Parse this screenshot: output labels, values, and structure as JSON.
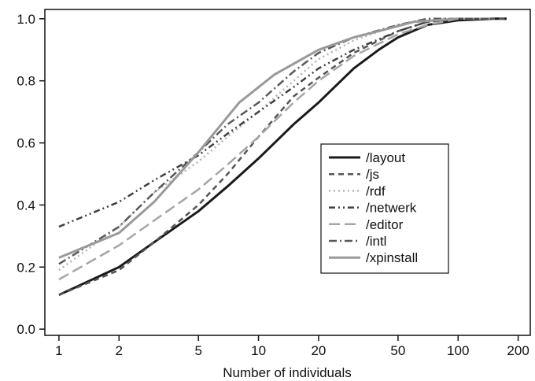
{
  "chart_data": {
    "type": "line",
    "title": "",
    "xlabel": "Number of individuals",
    "ylabel": "",
    "xscale": "log",
    "xlim": [
      0.85,
      230
    ],
    "ylim": [
      -0.02,
      1.03
    ],
    "xticks": [
      1,
      2,
      5,
      10,
      20,
      50,
      100,
      200
    ],
    "xtick_labels": [
      "1",
      "2",
      "5",
      "10",
      "20",
      "50",
      "100",
      "200"
    ],
    "yticks": [
      0.0,
      0.2,
      0.4,
      0.6,
      0.8,
      1.0
    ],
    "ytick_labels": [
      "0.0",
      "0.2",
      "0.4",
      "0.6",
      "0.8",
      "1.0"
    ],
    "grid": false,
    "legend_position": "center-right",
    "series": [
      {
        "name": "/layout",
        "color": "#1a1a1a",
        "width": 3.0,
        "dash": "",
        "x": [
          1,
          2,
          3,
          5,
          7,
          10,
          15,
          20,
          30,
          40,
          50,
          70,
          100,
          150,
          175
        ],
        "y": [
          0.11,
          0.2,
          0.28,
          0.38,
          0.46,
          0.55,
          0.66,
          0.73,
          0.84,
          0.9,
          0.94,
          0.98,
          0.995,
          1.0,
          1.0
        ]
      },
      {
        "name": "/js",
        "color": "#555555",
        "width": 2.5,
        "dash": "7,5",
        "x": [
          1,
          2,
          3,
          5,
          7,
          10,
          15,
          20,
          30,
          50,
          70,
          100,
          150,
          175
        ],
        "y": [
          0.11,
          0.19,
          0.28,
          0.4,
          0.5,
          0.62,
          0.75,
          0.81,
          0.89,
          0.96,
          0.99,
          1.0,
          1.0,
          1.0
        ]
      },
      {
        "name": "/rdf",
        "color": "#b3b3b3",
        "width": 2.5,
        "dash": "2,4",
        "x": [
          1,
          2,
          3,
          5,
          7,
          10,
          15,
          20,
          30,
          50,
          70,
          100
        ],
        "y": [
          0.19,
          0.33,
          0.44,
          0.54,
          0.62,
          0.7,
          0.8,
          0.87,
          0.93,
          0.98,
          1.0,
          1.0
        ]
      },
      {
        "name": "/netwerk",
        "color": "#404040",
        "width": 2.5,
        "dash": "8,4,2,4,2,4",
        "x": [
          1,
          2,
          3,
          5,
          7,
          10,
          15,
          20,
          30,
          50,
          70,
          100,
          150
        ],
        "y": [
          0.33,
          0.41,
          0.48,
          0.56,
          0.63,
          0.7,
          0.78,
          0.84,
          0.9,
          0.96,
          0.99,
          1.0,
          1.0
        ]
      },
      {
        "name": "/editor",
        "color": "#a6a6a6",
        "width": 2.5,
        "dash": "14,6",
        "x": [
          1,
          2,
          3,
          5,
          7,
          10,
          15,
          20,
          30,
          50,
          70,
          100,
          150
        ],
        "y": [
          0.16,
          0.27,
          0.35,
          0.45,
          0.53,
          0.62,
          0.73,
          0.8,
          0.88,
          0.95,
          0.98,
          1.0,
          1.0
        ]
      },
      {
        "name": "/intl",
        "color": "#595959",
        "width": 2.5,
        "dash": "10,4,2,4",
        "x": [
          1,
          2,
          3,
          5,
          7,
          10,
          15,
          20,
          30,
          50,
          70,
          100,
          150
        ],
        "y": [
          0.21,
          0.33,
          0.44,
          0.57,
          0.66,
          0.73,
          0.83,
          0.89,
          0.94,
          0.98,
          1.0,
          1.0,
          1.0
        ]
      },
      {
        "name": "/xpinstall",
        "color": "#999999",
        "width": 3.0,
        "dash": "",
        "x": [
          1,
          2,
          3,
          5,
          8,
          12,
          20,
          30,
          40,
          60,
          100
        ],
        "y": [
          0.23,
          0.31,
          0.41,
          0.57,
          0.73,
          0.82,
          0.9,
          0.94,
          0.96,
          0.99,
          1.0
        ]
      }
    ]
  }
}
